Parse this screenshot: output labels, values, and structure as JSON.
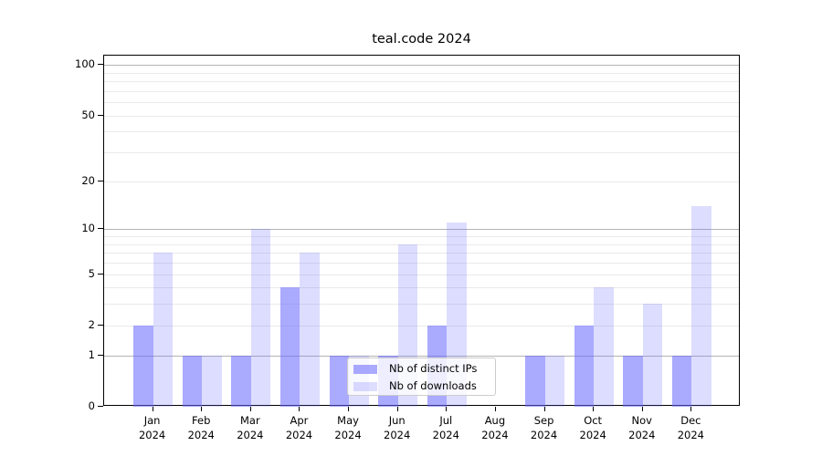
{
  "chart_data": {
    "type": "bar",
    "title": "teal.code 2024",
    "year": "2024",
    "categories": [
      "Jan",
      "Feb",
      "Mar",
      "Apr",
      "May",
      "Jun",
      "Jul",
      "Aug",
      "Sep",
      "Oct",
      "Nov",
      "Dec"
    ],
    "series": [
      {
        "name": "Nb of distinct IPs",
        "values": [
          2,
          1,
          1,
          4,
          1,
          1,
          2,
          0,
          1,
          2,
          1,
          1
        ],
        "color": "rgba(100,100,255,0.55)"
      },
      {
        "name": "Nb of downloads",
        "values": [
          7,
          1,
          10,
          7,
          1,
          8,
          11,
          0,
          1,
          4,
          3,
          14
        ],
        "color": "rgba(100,100,255,0.22)"
      }
    ],
    "xlabel": "",
    "ylabel": "",
    "yscale": "log1p",
    "ylim": [
      0,
      113.6
    ],
    "yticks": [
      100,
      50,
      20,
      10,
      5,
      2,
      1,
      0
    ],
    "major_gridlines": [
      1,
      10,
      100
    ],
    "minor_gridlines": [
      2,
      3,
      4,
      5,
      6,
      7,
      8,
      9,
      20,
      30,
      40,
      50,
      60,
      70,
      80,
      90
    ],
    "grid": true,
    "legend_position": "lower center",
    "colors": {
      "grid_major": "#b4b4b4",
      "grid_minor": "#eaeaea",
      "spine": "#000000",
      "text": "#000000",
      "background": "#ffffff"
    }
  }
}
